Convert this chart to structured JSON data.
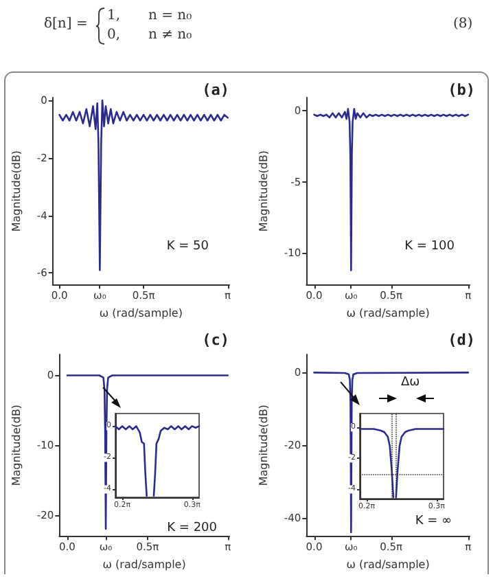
{
  "chart_data": [
    {
      "type": "other",
      "annotations": [
        "δ[n] =",
        "1,",
        "n = n₀",
        "0,",
        "n ≠ n₀",
        "(8)"
      ]
    },
    {
      "type": "line",
      "title": "(a)",
      "xlabel": "ω (rad/sample)",
      "ylabel": "Magnitude(dB)",
      "annotations": [
        "K = 50"
      ],
      "color": "#2b2b8f",
      "marker": "none",
      "xlim": [
        -0.126,
        3.173
      ],
      "xticks": [
        {
          "value": 0,
          "label": "0.0"
        },
        {
          "value": 0.754,
          "label": "ω₀"
        },
        {
          "value": 1.5708,
          "label": "0.5π"
        },
        {
          "value": 3.1416,
          "label": "π"
        }
      ],
      "ylim": [
        -6.4,
        0.1
      ],
      "yticks": [
        0,
        -2,
        -4,
        -6
      ],
      "x": [
        0,
        0.063,
        0.126,
        0.188,
        0.251,
        0.314,
        0.377,
        0.44,
        0.503,
        0.565,
        0.628,
        0.675,
        0.707,
        0.729,
        0.754,
        0.779,
        0.801,
        0.833,
        0.864,
        0.911,
        0.958,
        1.005,
        1.068,
        1.131,
        1.194,
        1.257,
        1.319,
        1.382,
        1.445,
        1.508,
        1.571,
        1.634,
        1.696,
        1.759,
        1.822,
        1.885,
        1.948,
        2.011,
        2.073,
        2.136,
        2.199,
        2.262,
        2.325,
        2.388,
        2.45,
        2.513,
        2.576,
        2.639,
        2.702,
        2.765,
        2.827,
        2.89,
        2.953,
        3.016,
        3.079,
        3.142
      ],
      "values": [
        -0.5,
        -0.7,
        -0.5,
        -0.7,
        -0.4,
        -0.7,
        -0.4,
        -0.8,
        -0.3,
        -0.9,
        -0.2,
        -1.0,
        -0.1,
        -1.5,
        -5.9,
        -1.5,
        0.0,
        -0.9,
        -0.2,
        -0.8,
        -0.3,
        -0.8,
        -0.4,
        -0.7,
        -0.4,
        -0.7,
        -0.5,
        -0.7,
        -0.5,
        -0.7,
        -0.5,
        -0.7,
        -0.5,
        -0.7,
        -0.5,
        -0.7,
        -0.5,
        -0.7,
        -0.5,
        -0.7,
        -0.5,
        -0.7,
        -0.5,
        -0.7,
        -0.5,
        -0.7,
        -0.5,
        -0.7,
        -0.5,
        -0.7,
        -0.5,
        -0.7,
        -0.5,
        -0.7,
        -0.5,
        -0.6
      ]
    },
    {
      "type": "line",
      "title": "(b)",
      "xlabel": "ω (rad/sample)",
      "ylabel": "Magnitude(dB)",
      "annotations": [
        "K = 100"
      ],
      "color": "#2b2b8f",
      "marker": "none",
      "xlim": [
        -0.157,
        3.173
      ],
      "xticks": [
        {
          "value": 0,
          "label": "0.0"
        },
        {
          "value": 0.754,
          "label": "ω₀"
        },
        {
          "value": 1.5708,
          "label": "0.5π"
        },
        {
          "value": 3.1416,
          "label": "π"
        }
      ],
      "ylim": [
        -12.2,
        0.9
      ],
      "yticks": [
        0,
        -5,
        -10
      ],
      "x": [
        0,
        0.063,
        0.126,
        0.188,
        0.251,
        0.314,
        0.377,
        0.44,
        0.503,
        0.565,
        0.628,
        0.66,
        0.691,
        0.723,
        0.738,
        0.754,
        0.77,
        0.785,
        0.817,
        0.848,
        0.88,
        0.942,
        1.005,
        1.068,
        1.131,
        1.194,
        1.257,
        1.319,
        1.382,
        1.445,
        1.508,
        1.571,
        1.634,
        1.696,
        1.759,
        1.822,
        1.885,
        1.948,
        2.011,
        2.073,
        2.136,
        2.199,
        2.262,
        2.325,
        2.388,
        2.45,
        2.513,
        2.576,
        2.639,
        2.702,
        2.765,
        2.827,
        2.89,
        2.953,
        3.016,
        3.079,
        3.142
      ],
      "values": [
        -0.3,
        -0.4,
        -0.3,
        -0.4,
        -0.3,
        -0.5,
        -0.2,
        -0.5,
        -0.2,
        -0.5,
        -0.1,
        -0.6,
        0.1,
        -0.8,
        -3,
        -11.2,
        -3,
        -0.8,
        0.1,
        -0.6,
        -0.2,
        -0.5,
        -0.2,
        -0.5,
        -0.3,
        -0.4,
        -0.3,
        -0.4,
        -0.3,
        -0.4,
        -0.3,
        -0.4,
        -0.3,
        -0.4,
        -0.3,
        -0.4,
        -0.3,
        -0.4,
        -0.3,
        -0.4,
        -0.3,
        -0.4,
        -0.3,
        -0.4,
        -0.3,
        -0.4,
        -0.3,
        -0.4,
        -0.3,
        -0.4,
        -0.3,
        -0.4,
        -0.3,
        -0.4,
        -0.3,
        -0.4,
        -0.3
      ]
    },
    {
      "type": "line",
      "title": "(c)",
      "xlabel": "ω (rad/sample)",
      "ylabel": "Magnitude(dB)",
      "annotations": [
        "K = 200"
      ],
      "color": "#2b2b8f",
      "marker": "none",
      "xlim": [
        -0.157,
        3.173
      ],
      "xticks": [
        {
          "value": 0,
          "label": "0.0"
        },
        {
          "value": 0.754,
          "label": "ω₀"
        },
        {
          "value": 1.5708,
          "label": "0.5π"
        },
        {
          "value": 3.1416,
          "label": "π"
        }
      ],
      "ylim": [
        -23,
        3
      ],
      "yticks": [
        0,
        -10,
        -20
      ],
      "x": [
        0,
        0.628,
        0.707,
        0.729,
        0.741,
        0.754,
        0.767,
        0.779,
        0.801,
        0.88,
        3.142
      ],
      "values": [
        0,
        0,
        -0.3,
        -2,
        -8,
        -22,
        -8,
        -2,
        -0.3,
        0,
        0
      ]
    },
    {
      "type": "line",
      "color": "#2b2b8f",
      "marker": "none",
      "xlim": [
        0.597,
        0.974
      ],
      "xticks": [
        {
          "value": 0.6283,
          "label": "0.2π"
        },
        {
          "value": 0.9425,
          "label": "0.3π"
        }
      ],
      "ylim": [
        -4.5,
        0.8
      ],
      "yticks": [
        0,
        -2,
        -4
      ],
      "x": [
        0.597,
        0.613,
        0.628,
        0.644,
        0.66,
        0.675,
        0.691,
        0.707,
        0.716,
        0.726,
        0.732,
        0.738,
        0.754,
        0.77,
        0.776,
        0.782,
        0.792,
        0.801,
        0.817,
        0.833,
        0.848,
        0.864,
        0.88,
        0.895,
        0.911,
        0.927,
        0.942,
        0.958,
        0.974
      ],
      "values": [
        0,
        -0.2,
        0,
        -0.2,
        0,
        -0.2,
        0,
        -0.4,
        -1.0,
        -1.1,
        -3,
        -4.4,
        null,
        -4.4,
        -3,
        -1.1,
        -0.8,
        -0.3,
        -0.1,
        -0.2,
        0,
        -0.2,
        0,
        -0.2,
        0,
        -0.2,
        0,
        -0.1,
        0
      ]
    },
    {
      "type": "line",
      "title": "(d)",
      "xlabel": "ω (rad/sample)",
      "ylabel": "Magnitude(dB)",
      "annotations": [
        "K = ∞"
      ],
      "color": "#2b2b8f",
      "marker": "none",
      "xlim": [
        -0.157,
        3.173
      ],
      "xticks": [
        {
          "value": 0,
          "label": "0.0"
        },
        {
          "value": 0.754,
          "label": "ω₀"
        },
        {
          "value": 1.5708,
          "label": "0.5π"
        },
        {
          "value": 3.1416,
          "label": "π"
        }
      ],
      "ylim": [
        -45,
        5
      ],
      "yticks": [
        0,
        -20,
        -40
      ],
      "x": [
        0,
        0.628,
        0.707,
        0.729,
        0.741,
        0.754,
        0.767,
        0.779,
        0.801,
        0.88,
        3.142
      ],
      "values": [
        0,
        -0.1,
        -0.5,
        -2,
        -8,
        -44,
        -8,
        -2,
        -0.5,
        -0.1,
        0
      ]
    },
    {
      "type": "line",
      "annotations": [
        "Δω"
      ],
      "color": "#2b2b8f",
      "marker": "none",
      "xlim": [
        0.597,
        0.974
      ],
      "xticks": [
        {
          "value": 0.6283,
          "label": "0.2π"
        },
        {
          "value": 0.9425,
          "label": "0.3π"
        }
      ],
      "ylim": [
        -4.6,
        0.9
      ],
      "yticks": [
        0,
        -2,
        -4
      ],
      "ref_lines": [
        {
          "axis": "y",
          "value": -3,
          "line_style": "dotted"
        },
        {
          "axis": "x",
          "value": 0.744,
          "line_style": "dotted"
        },
        {
          "axis": "x",
          "value": 0.764,
          "line_style": "dotted"
        }
      ],
      "x": [
        0.597,
        0.628,
        0.66,
        0.691,
        0.707,
        0.723,
        0.732,
        0.741,
        0.748,
        0.754,
        0.76,
        0.767,
        0.776,
        0.785,
        0.801,
        0.817,
        0.848,
        0.88,
        0.911,
        0.942,
        0.974
      ],
      "values": [
        -0.1,
        -0.1,
        -0.1,
        -0.2,
        -0.3,
        -0.6,
        -1.2,
        -2.8,
        -4.5,
        null,
        -4.5,
        -2.8,
        -1.2,
        -0.6,
        -0.3,
        -0.2,
        -0.1,
        -0.1,
        -0.1,
        -0.1,
        -0.1
      ]
    }
  ]
}
